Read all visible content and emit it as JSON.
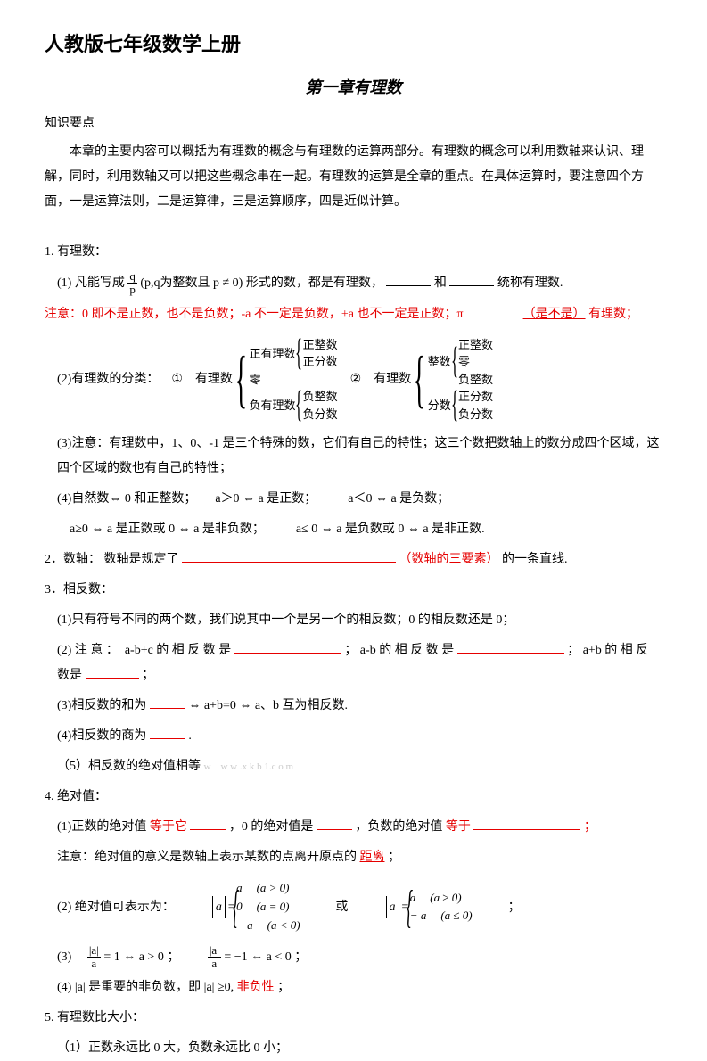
{
  "colors": {
    "text": "#000000",
    "highlight": "#e60000",
    "bg": "#ffffff",
    "watermark": "#cccccc"
  },
  "doc_title": "人教版七年级数学上册",
  "chapter_title": "第一章有理数",
  "section_label": "知识要点",
  "intro": "本章的主要内容可以概括为有理数的概念与有理数的运算两部分。有理数的概念可以利用数轴来认识、理解，同时，利用数轴又可以把这些概念串在一起。有理数的运算是全章的重点。在具体运算时，要注意四个方面，一是运算法则，二是运算律，三是运算顺序，四是近似计算。",
  "s1": {
    "title": "1. 有理数：",
    "p1_a": "(1) 凡能写成",
    "frac_num": "q",
    "frac_den": "p",
    "p1_b": "(p,q为整数且 p ≠ 0) 形式的数，都是有理数，",
    "p1_c": "和",
    "p1_d": "统称有理数.",
    "note_a": "注意：0 即不是正数，也不是负数；-a 不一定是负数，+a 也不一定是正数；π",
    "note_b": "（是不是）",
    "note_c": "有理数；",
    "p2_label": "(2)有理数的分类：",
    "circ1": "①",
    "circ2": "②",
    "cat": {
      "root": "有理数",
      "c1": "正有理数",
      "c1a": "正整数",
      "c1b": "正分数",
      "c2": "零",
      "c3": "负有理数",
      "c3a": "负整数",
      "c3b": "负分数",
      "d1": "整数",
      "d1a": "正整数",
      "d1b": "零",
      "d1c": "负整数",
      "d2": "分数",
      "d2a": "正分数",
      "d2b": "负分数"
    },
    "p3": "(3)注意：有理数中，1、0、-1 是三个特殊的数，它们有自己的特性；这三个数把数轴上的数分成四个区域，这四个区域的数也有自己的特性；",
    "p4": "(4)自然数⇔ 0 和正整数；　　a＞0  ⇔ a 是正数；　　　a＜0  ⇔ a 是负数；",
    "p4b": "a≥0 ⇔ a 是正数或 0 ⇔ a 是非负数；　　　a≤ 0 ⇔ a 是负数或 0 ⇔ a 是非正数."
  },
  "s2": {
    "title": "2．数轴：",
    "body_a": "数轴是规定了",
    "body_b": "（数轴的三要素）",
    "body_c": "的一条直线."
  },
  "s3": {
    "title": "3．相反数：",
    "p1": "(1)只有符号不同的两个数，我们说其中一个是另一个的相反数；0 的相反数还是 0；",
    "p2_a": "(2) 注 意 ：　a-b+c 的 相 反 数 是",
    "p2_b": "； a-b 的 相 反 数 是",
    "p2_c": "； a+b 的 相 反 数是",
    "p2_d": "；",
    "p3": "(3)相反数的和为",
    "p3b": " ⇔ a+b=0 ⇔ a、b 互为相反数.",
    "p4": "(4)相反数的商为",
    "p4b": ".",
    "p5": "（5）相反数的绝对值相等",
    "watermark": "w　w w .x k b 1.c o m"
  },
  "s4": {
    "title": "4. 绝对值：",
    "p1_a": "(1)正数的绝对值",
    "p1_b": "等于它",
    "p1_c": "，0 的绝对值是",
    "p1_d": "，负数的绝对值",
    "p1_e": "等于",
    "p1_f": "；",
    "p1_note_a": "注意：绝对值的意义是数轴上表示某数的点离开原点的",
    "p1_note_b": "距离",
    "p1_note_c": "；",
    "p2_label": "(2)  绝对值可表示为：",
    "pw1": {
      "r1a": "a",
      "r1b": "(a > 0)",
      "r2a": "0",
      "r2b": "(a = 0)",
      "r3a": "− a",
      "r3b": "(a < 0)"
    },
    "or": "或",
    "pw2": {
      "r1a": "a",
      "r1b": "(a ≥ 0)",
      "r2a": "− a",
      "r2b": "(a ≤ 0)"
    },
    "p3": "(3)",
    "p3_eq1": "= 1 ⇔ a > 0 ；",
    "p3_eq2": "= −1 ⇔ a < 0 ；",
    "p4_a": "(4)  |a| 是重要的非负数，即 |a| ≥0, ",
    "p4_b": "非负性",
    "p4_c": "；"
  },
  "s5": {
    "title": "5. 有理数比大小：",
    "p1": "（1）正数永远比 0 大，负数永远比 0 小；"
  }
}
